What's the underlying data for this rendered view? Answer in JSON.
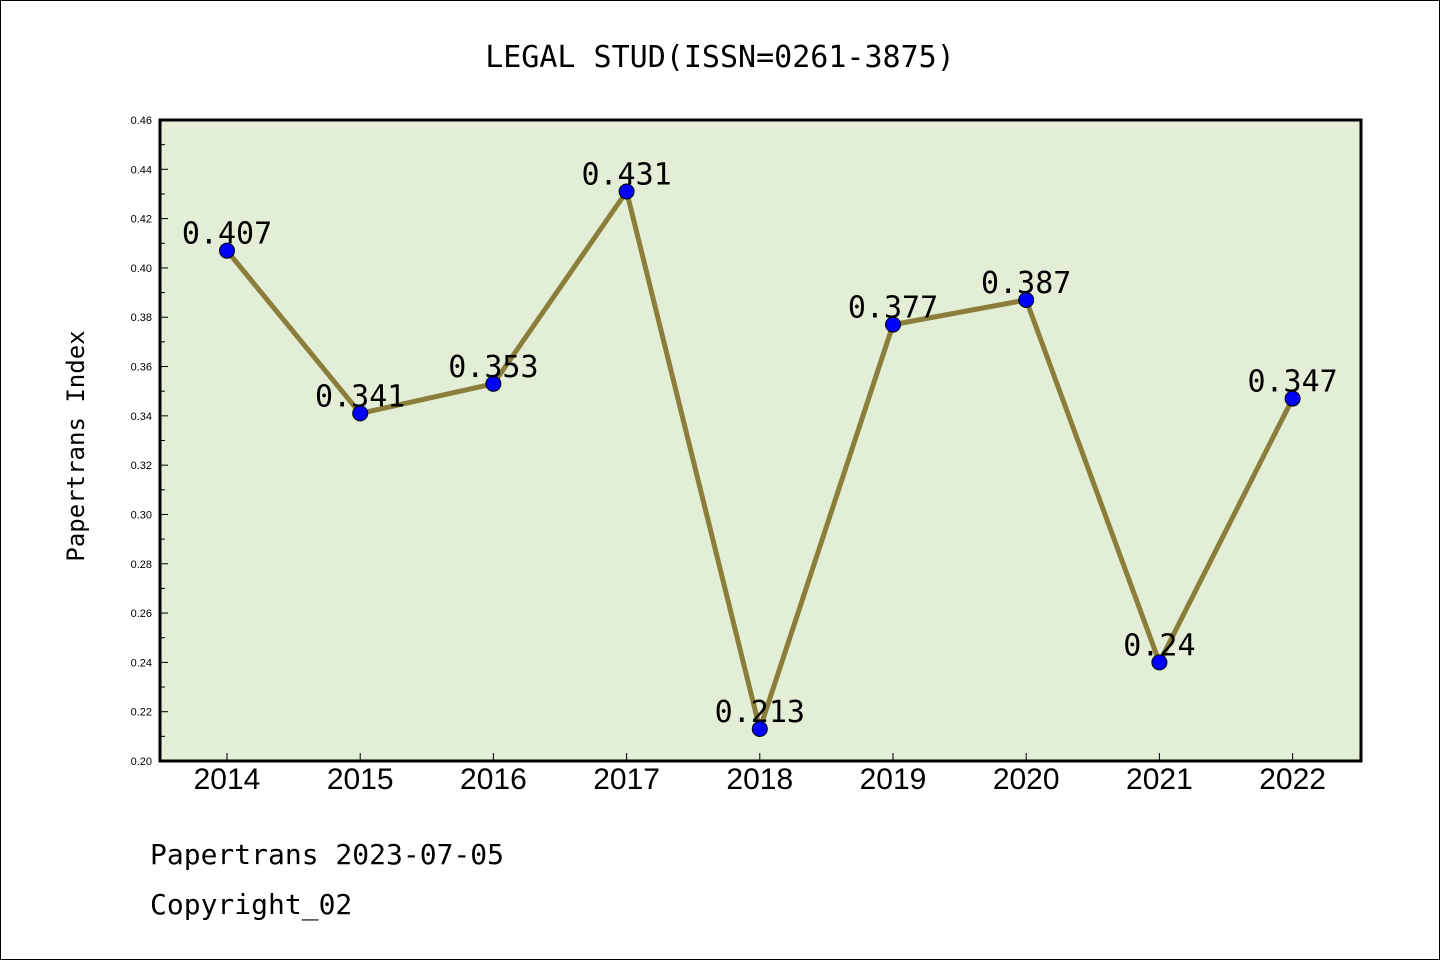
{
  "chart_data": {
    "type": "line",
    "title": "LEGAL STUD(ISSN=0261-3875)",
    "ylabel": "Papertrans Index",
    "xlabel": "",
    "categories": [
      "2014",
      "2015",
      "2016",
      "2017",
      "2018",
      "2019",
      "2020",
      "2021",
      "2022"
    ],
    "values": [
      0.407,
      0.341,
      0.353,
      0.431,
      0.213,
      0.377,
      0.387,
      0.24,
      0.347
    ],
    "data_labels": [
      "0.407",
      "0.341",
      "0.353",
      "0.431",
      "0.213",
      "0.377",
      "0.387",
      "0.24",
      "0.347"
    ],
    "ylim": [
      0.2,
      0.46
    ],
    "yticks": [
      "0.20",
      "0.22",
      "0.24",
      "0.26",
      "0.28",
      "0.30",
      "0.32",
      "0.34",
      "0.36",
      "0.38",
      "0.40",
      "0.42",
      "0.44",
      "0.46"
    ],
    "ytick_values": [
      0.2,
      0.22,
      0.24,
      0.26,
      0.28,
      0.3,
      0.32,
      0.34,
      0.36,
      0.38,
      0.4,
      0.42,
      0.44,
      0.46
    ],
    "grid": false,
    "colors": {
      "plot_background": "#e2efd6",
      "line": "#8b7d3a",
      "marker": "#0000ff"
    }
  },
  "footer": {
    "line1": "Papertrans 2023-07-05",
    "line2": "Copyright_02"
  }
}
